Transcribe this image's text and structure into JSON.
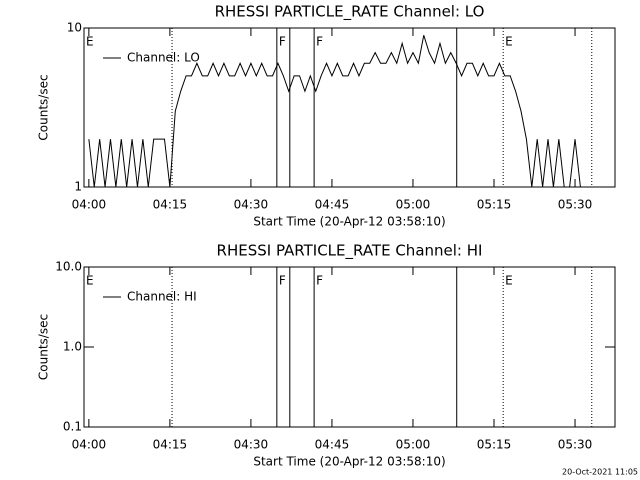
{
  "chart_data": [
    {
      "type": "line",
      "title": "RHESSI PARTICLE_RATE Channel: LO",
      "xlabel": "Start Time (20-Apr-12 03:58:10)",
      "ylabel": "Counts/sec",
      "log_y": true,
      "ylim": [
        1,
        10
      ],
      "yticks": [
        1,
        10
      ],
      "xlim": [
        -0.9,
        97.4
      ],
      "xticks": [
        {
          "value": 0,
          "label": "04:00"
        },
        {
          "value": 15,
          "label": "04:15"
        },
        {
          "value": 30,
          "label": "04:30"
        },
        {
          "value": 45,
          "label": "04:45"
        },
        {
          "value": 60,
          "label": "05:00"
        },
        {
          "value": 75,
          "label": "05:15"
        },
        {
          "value": 90,
          "label": "05:30"
        }
      ],
      "series": [
        {
          "name": "Channel: LO",
          "color": "#000000",
          "x": [
            0,
            1,
            2,
            3,
            4,
            5,
            6,
            7,
            8,
            9,
            10,
            11,
            12,
            13,
            14,
            15,
            16,
            17,
            18,
            19,
            20,
            21,
            22,
            23,
            24,
            25,
            26,
            27,
            28,
            29,
            30,
            31,
            32,
            33,
            34,
            35,
            36,
            37,
            38,
            39,
            40,
            41,
            42,
            43,
            44,
            45,
            46,
            47,
            48,
            49,
            50,
            51,
            52,
            53,
            54,
            55,
            56,
            57,
            58,
            59,
            60,
            61,
            62,
            63,
            64,
            65,
            66,
            67,
            68,
            69,
            70,
            71,
            72,
            73,
            74,
            75,
            76,
            77,
            78,
            79,
            80,
            81,
            82,
            83,
            84,
            85,
            86,
            87,
            88,
            89,
            90,
            91
          ],
          "values": [
            2,
            1,
            2,
            1,
            2,
            1,
            2,
            1,
            2,
            1,
            2,
            1,
            2,
            2,
            2,
            1,
            3,
            4,
            5,
            5,
            6,
            5,
            5,
            6,
            5,
            6,
            5,
            5,
            6,
            5,
            6,
            5,
            6,
            5,
            5,
            6,
            5,
            4,
            5,
            5,
            4,
            5,
            4,
            5,
            6,
            5,
            6,
            5,
            5,
            6,
            5,
            6,
            6,
            7,
            6,
            6,
            7,
            6,
            8,
            6,
            7,
            6,
            9,
            7,
            6,
            8,
            6,
            7,
            6,
            5,
            6,
            6,
            5,
            6,
            5,
            5,
            6,
            5,
            5,
            4,
            3,
            2,
            1,
            2,
            1,
            2,
            1,
            2,
            1,
            1,
            2,
            1
          ]
        }
      ],
      "events": [
        {
          "x": -0.9,
          "style": "dotted",
          "label": "E"
        },
        {
          "x": 15.4,
          "style": "dotted"
        },
        {
          "x": 34.8,
          "style": "solid",
          "label": "F"
        },
        {
          "x": 37.2,
          "style": "solid"
        },
        {
          "x": 41.7,
          "style": "solid",
          "label": "F"
        },
        {
          "x": 68.1,
          "style": "solid"
        },
        {
          "x": 76.7,
          "style": "dotted",
          "label": "E"
        },
        {
          "x": 93.1,
          "style": "dotted"
        }
      ]
    },
    {
      "type": "line",
      "title": "RHESSI PARTICLE_RATE Channel: HI",
      "xlabel": "Start Time (20-Apr-12 03:58:10)",
      "ylabel": "Counts/sec",
      "log_y": true,
      "ylim": [
        0.1,
        10
      ],
      "yticks": [
        {
          "value": 0.1,
          "label": "0.1"
        },
        {
          "value": 1,
          "label": "1.0"
        },
        {
          "value": 10,
          "label": "10.0"
        }
      ],
      "xlim": [
        -0.9,
        97.4
      ],
      "xticks": [
        {
          "value": 0,
          "label": "04:00"
        },
        {
          "value": 15,
          "label": "04:15"
        },
        {
          "value": 30,
          "label": "04:30"
        },
        {
          "value": 45,
          "label": "04:45"
        },
        {
          "value": 60,
          "label": "05:00"
        },
        {
          "value": 75,
          "label": "05:15"
        },
        {
          "value": 90,
          "label": "05:30"
        }
      ],
      "series": [
        {
          "name": "Channel: HI",
          "color": "#000000",
          "x": [],
          "values": []
        }
      ],
      "events": [
        {
          "x": -0.9,
          "style": "dotted",
          "label": "E"
        },
        {
          "x": 15.4,
          "style": "dotted"
        },
        {
          "x": 34.8,
          "style": "solid",
          "label": "F"
        },
        {
          "x": 37.2,
          "style": "solid"
        },
        {
          "x": 41.7,
          "style": "solid",
          "label": "F"
        },
        {
          "x": 68.1,
          "style": "solid"
        },
        {
          "x": 76.7,
          "style": "dotted",
          "label": "E"
        },
        {
          "x": 93.1,
          "style": "dotted"
        }
      ]
    }
  ],
  "footer": "20-Oct-2021 11:05"
}
